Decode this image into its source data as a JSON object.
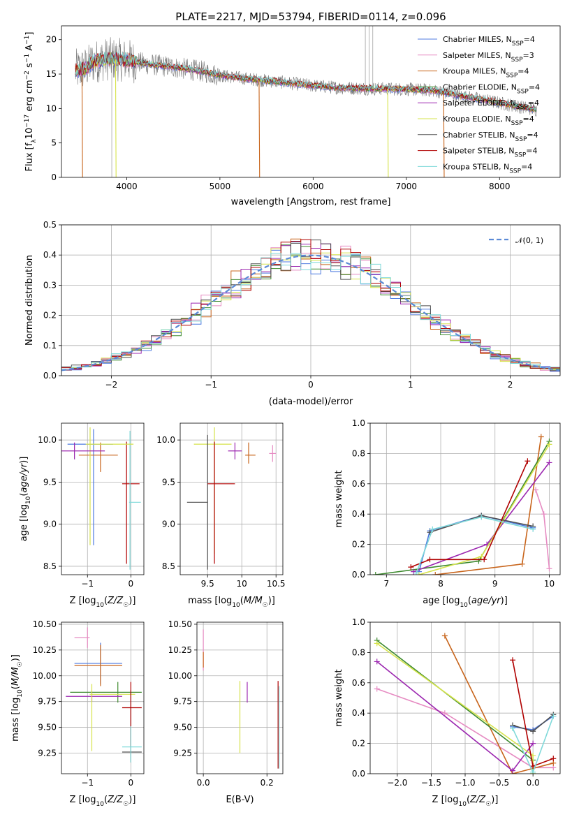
{
  "colors": {
    "Chabrier MILES": "#4f7be0",
    "Salpeter MILES": "#e68bc2",
    "Kroupa MILES": "#c8651c",
    "Chabrier ELODIE": "#3d8a2e",
    "Salpeter ELODIE": "#9c27b0",
    "Kroupa ELODIE": "#d6e34b",
    "Chabrier STELIB": "#505050",
    "Salpeter STELIB": "#b00000",
    "Kroupa STELIB": "#7fd9d9",
    "data": "#7a7a7a",
    "normal": "#5b8ad6",
    "grid": "#b0b0b0"
  },
  "chart_data": [
    {
      "id": "spectrum",
      "type": "line",
      "title": "PLATE=2217, MJD=53794, FIBERID=0114, z=0.096",
      "xlabel": "wavelength [Angstrom, rest frame]",
      "ylabel": "Flux [f_λ10^-17 erg cm^-2 s^-1 A^-1]",
      "xlim": [
        3300,
        8650
      ],
      "ylim": [
        0,
        22
      ],
      "xticks": [
        4000,
        5000,
        6000,
        7000,
        8000
      ],
      "yticks": [
        0,
        5,
        10,
        15,
        20
      ],
      "grid": false,
      "legend_placement": "top-right",
      "series": [
        {
          "name": "Chabrier MILES, N_SSP=4",
          "label_main": "Chabrier MILES, N",
          "label_sub": "SSP",
          "label_tail": "=4",
          "color": "Chabrier MILES"
        },
        {
          "name": "Salpeter MILES, N_SSP=3",
          "label_main": "Salpeter MILES, N",
          "label_sub": "SSP",
          "label_tail": "=3",
          "color": "Salpeter MILES"
        },
        {
          "name": "Kroupa MILES, N_SSP=4",
          "label_main": "Kroupa MILES, N",
          "label_sub": "SSP",
          "label_tail": "=4",
          "color": "Kroupa MILES"
        },
        {
          "name": "Chabrier ELODIE, N_SSP=4",
          "label_main": "Chabrier ELODIE, N",
          "label_sub": "SSP",
          "label_tail": "=4",
          "color": "Chabrier ELODIE"
        },
        {
          "name": "Salpeter ELODIE, N_SSP=4",
          "label_main": "Salpeter ELODIE, N",
          "label_sub": "SSP",
          "label_tail": "=4",
          "color": "Salpeter ELODIE"
        },
        {
          "name": "Kroupa ELODIE, N_SSP=4",
          "label_main": "Kroupa ELODIE, N",
          "label_sub": "SSP",
          "label_tail": "=4",
          "color": "Kroupa ELODIE"
        },
        {
          "name": "Chabrier STELIB, N_SSP=4",
          "label_main": "Chabrier STELIB, N",
          "label_sub": "SSP",
          "label_tail": "=4",
          "color": "Chabrier STELIB"
        },
        {
          "name": "Salpeter STELIB, N_SSP=4",
          "label_main": "Salpeter STELIB, N",
          "label_sub": "SSP",
          "label_tail": "=4",
          "color": "Salpeter STELIB"
        },
        {
          "name": "Kroupa STELIB, N_SSP=4",
          "label_main": "Kroupa STELIB, N",
          "label_sub": "SSP",
          "label_tail": "=4",
          "color": "Kroupa STELIB"
        }
      ],
      "continuum": {
        "x": [
          3450,
          3550,
          3650,
          3800,
          4000,
          4200,
          4500,
          4800,
          5000,
          5300,
          5600,
          6000,
          6300,
          6600,
          7000,
          7300,
          7600,
          8000,
          8400
        ],
        "y": [
          15.5,
          15.8,
          16.8,
          17.2,
          17.0,
          16.5,
          16.0,
          15.4,
          14.8,
          14.3,
          13.9,
          13.3,
          13.0,
          12.9,
          12.8,
          12.6,
          11.8,
          10.8,
          9.8
        ]
      },
      "model_dropouts": [
        {
          "x": 3520,
          "color": "Kroupa MILES"
        },
        {
          "x": 5420,
          "color": "Kroupa MILES"
        },
        {
          "x": 7400,
          "color": "Kroupa MILES"
        },
        {
          "x": 3880,
          "color": "Kroupa ELODIE"
        },
        {
          "x": 6800,
          "color": "Kroupa ELODIE"
        }
      ],
      "data_spikes": [
        {
          "x": 3840,
          "y": 0
        },
        {
          "x": 6560,
          "y": 22
        },
        {
          "x": 6600,
          "y": 22
        },
        {
          "x": 6640,
          "y": 22
        }
      ]
    },
    {
      "id": "residuals",
      "type": "line",
      "xlabel": "(data-model)/error",
      "ylabel": "Normed distribution",
      "xlim": [
        -2.5,
        2.5
      ],
      "ylim": [
        0,
        0.5
      ],
      "xticks": [
        -2,
        -1,
        0,
        1,
        2
      ],
      "yticks": [
        0.0,
        0.1,
        0.2,
        0.3,
        0.4,
        0.5
      ],
      "grid": true,
      "legend_placement": "top-right",
      "legend_label": "𝒩(0, 1)",
      "normal_curve": {
        "mu": 0,
        "sigma": 1
      }
    },
    {
      "id": "age-vs-z",
      "type": "scatter",
      "xlabel": "Z [log10(Z/Z☉)]",
      "ylabel": "age [log10(age/yr)]",
      "xlim": [
        -1.6,
        0.3
      ],
      "ylim": [
        8.4,
        10.2
      ],
      "xticks": [
        -1,
        0
      ],
      "yticks": [
        8.5,
        9.0,
        9.5,
        10.0
      ],
      "grid": true,
      "points": [
        {
          "x": -0.86,
          "y": 9.95,
          "xerr": [
            0.6,
            0.45
          ],
          "yerr": [
            1.2,
            0.18
          ],
          "color": "Chabrier MILES"
        },
        {
          "x": -0.7,
          "y": 9.82,
          "xerr": [
            0.5,
            0.4
          ],
          "yerr": [
            0.2,
            0.15
          ],
          "color": "Kroupa MILES"
        },
        {
          "x": -0.1,
          "y": 9.48,
          "xerr": [
            0.1,
            0.3
          ],
          "yerr": [
            0.95,
            0.5
          ],
          "color": "Salpeter STELIB"
        },
        {
          "x": -0.02,
          "y": 9.26,
          "xerr": [
            0.02,
            0.25
          ],
          "yerr": [
            0.8,
            0.85
          ],
          "color": "Kroupa STELIB"
        },
        {
          "x": -0.94,
          "y": 9.95,
          "xerr": [
            0.1,
            1.0
          ],
          "yerr": [
            1.2,
            0.2
          ],
          "color": "Kroupa ELODIE"
        },
        {
          "x": -1.3,
          "y": 9.87,
          "xerr": [
            0.3,
            0.7
          ],
          "yerr": [
            0.1,
            0.1
          ],
          "color": "Salpeter ELODIE"
        }
      ]
    },
    {
      "id": "age-vs-mass",
      "type": "scatter",
      "xlabel": "mass [log10(M/M☉)]",
      "ylabel": "",
      "xlim": [
        9.1,
        10.6
      ],
      "ylim": [
        8.4,
        10.2
      ],
      "xticks": [
        9.5,
        10.0,
        10.5
      ],
      "yticks": [
        8.5,
        9.0,
        9.5,
        10.0
      ],
      "grid": true,
      "points": [
        {
          "x": 9.6,
          "y": 9.95,
          "xerr": [
            0.3,
            0.25
          ],
          "yerr": [
            1.3,
            0.2
          ],
          "color": "Kroupa ELODIE"
        },
        {
          "x": 9.5,
          "y": 9.26,
          "xerr": [
            0.3,
            0.0
          ],
          "yerr": [
            0.8,
            0.8
          ],
          "color": "Chabrier STELIB"
        },
        {
          "x": 9.6,
          "y": 9.48,
          "xerr": [
            0.1,
            0.3
          ],
          "yerr": [
            0.95,
            0.5
          ],
          "color": "Salpeter STELIB"
        },
        {
          "x": 10.1,
          "y": 9.82,
          "xerr": [
            0.05,
            0.1
          ],
          "yerr": [
            0.1,
            0.15
          ],
          "color": "Kroupa MILES"
        },
        {
          "x": 10.45,
          "y": 9.84,
          "xerr": [
            0.05,
            0.05
          ],
          "yerr": [
            0.1,
            0.1
          ],
          "color": "Salpeter MILES"
        },
        {
          "x": 9.9,
          "y": 9.87,
          "xerr": [
            0.1,
            0.1
          ],
          "yerr": [
            0.1,
            0.1
          ],
          "color": "Salpeter ELODIE"
        }
      ]
    },
    {
      "id": "weight-vs-age",
      "type": "line",
      "xlabel": "age [log10(age/yr)]",
      "ylabel": "mass weight",
      "xlim": [
        6.7,
        10.2
      ],
      "ylim": [
        0.0,
        1.0
      ],
      "xticks": [
        7,
        8,
        9,
        10
      ],
      "yticks": [
        0.0,
        0.2,
        0.4,
        0.6,
        0.8,
        1.0
      ],
      "grid": true,
      "series": [
        {
          "color": "Chabrier MILES",
          "x": [
            7.6,
            7.8,
            8.75,
            9.7
          ],
          "y": [
            0.02,
            0.29,
            0.39,
            0.31
          ]
        },
        {
          "color": "Salpeter MILES",
          "x": [
            9.75,
            9.9,
            10.0
          ],
          "y": [
            0.56,
            0.4,
            0.04
          ]
        },
        {
          "color": "Kroupa MILES",
          "x": [
            7.9,
            9.5,
            9.85
          ],
          "y": [
            0.0,
            0.07,
            0.91
          ]
        },
        {
          "color": "Chabrier ELODIE",
          "x": [
            6.8,
            8.7,
            10.0
          ],
          "y": [
            0.0,
            0.09,
            0.88
          ]
        },
        {
          "color": "Salpeter ELODIE",
          "x": [
            7.5,
            8.85,
            10.0
          ],
          "y": [
            0.02,
            0.2,
            0.74
          ]
        },
        {
          "color": "Kroupa ELODIE",
          "x": [
            7.6,
            8.75,
            10.0
          ],
          "y": [
            0.0,
            0.12,
            0.86
          ]
        },
        {
          "color": "Chabrier STELIB",
          "x": [
            7.8,
            8.75,
            9.7
          ],
          "y": [
            0.28,
            0.39,
            0.32
          ]
        },
        {
          "color": "Salpeter STELIB",
          "x": [
            7.45,
            7.8,
            8.8,
            9.6
          ],
          "y": [
            0.05,
            0.1,
            0.1,
            0.75
          ]
        },
        {
          "color": "Kroupa STELIB",
          "x": [
            7.55,
            7.85,
            8.75,
            9.7
          ],
          "y": [
            0.01,
            0.3,
            0.38,
            0.3
          ]
        }
      ]
    },
    {
      "id": "mass-vs-z",
      "type": "scatter",
      "xlabel": "Z [log10(Z/Z☉)]",
      "ylabel": "mass [log10(M/M☉)]",
      "xlim": [
        -1.6,
        0.3
      ],
      "ylim": [
        9.05,
        10.52
      ],
      "xticks": [
        -1,
        0
      ],
      "yticks": [
        9.25,
        9.5,
        9.75,
        10.0,
        10.25,
        10.5
      ],
      "grid": true,
      "points": [
        {
          "x": -1.0,
          "y": 10.37,
          "xerr": [
            0.3,
            0.05
          ],
          "yerr": [
            0.1,
            0.1
          ],
          "color": "Salpeter MILES"
        },
        {
          "x": -0.7,
          "y": 10.12,
          "xerr": [
            0.6,
            0.5
          ],
          "yerr": [
            0.2,
            0.2
          ],
          "color": "Chabrier MILES"
        },
        {
          "x": -0.7,
          "y": 10.1,
          "xerr": [
            0.6,
            0.5
          ],
          "yerr": [
            0.2,
            0.2
          ],
          "color": "Kroupa MILES"
        },
        {
          "x": -0.3,
          "y": 9.84,
          "xerr": [
            1.1,
            0.55
          ],
          "yerr": [
            0.1,
            0.1
          ],
          "color": "Chabrier ELODIE"
        },
        {
          "x": -0.9,
          "y": 9.8,
          "xerr": [
            0.6,
            0.7
          ],
          "yerr": [
            0.05,
            0.05
          ],
          "color": "Salpeter ELODIE"
        },
        {
          "x": -0.9,
          "y": 9.82,
          "xerr": [
            0.05,
            1.0
          ],
          "yerr": [
            0.55,
            0.1
          ],
          "color": "Kroupa ELODIE"
        },
        {
          "x": 0.0,
          "y": 9.26,
          "xerr": [
            0.2,
            0.25
          ],
          "yerr": [
            0.1,
            0.6
          ],
          "color": "Chabrier STELIB"
        },
        {
          "x": 0.0,
          "y": 9.69,
          "xerr": [
            0.2,
            0.25
          ],
          "yerr": [
            0.38,
            0.25
          ],
          "color": "Salpeter STELIB"
        },
        {
          "x": 0.0,
          "y": 9.31,
          "xerr": [
            0.2,
            0.25
          ],
          "yerr": [
            0.15,
            0.2
          ],
          "color": "Kroupa STELIB"
        }
      ]
    },
    {
      "id": "mass-vs-ebv",
      "type": "scatter",
      "xlabel": "E(B-V)",
      "ylabel": "",
      "xlim": [
        -0.02,
        0.25
      ],
      "ylim": [
        9.05,
        10.52
      ],
      "xticks": [
        0.0,
        0.2
      ],
      "yticks": [
        9.25,
        9.5,
        9.75,
        10.0,
        10.25,
        10.5
      ],
      "grid": true,
      "points": [
        {
          "x": 0.0,
          "y": 10.25,
          "xerr": [
            0,
            0
          ],
          "yerr": [
            0.2,
            0.2
          ],
          "color": "Salpeter MILES"
        },
        {
          "x": 0.0,
          "y": 10.18,
          "xerr": [
            0,
            0
          ],
          "yerr": [
            0.1,
            0.05
          ],
          "color": "Kroupa MILES"
        },
        {
          "x": 0.115,
          "y": 9.6,
          "xerr": [
            0,
            0
          ],
          "yerr": [
            0.35,
            0.35
          ],
          "color": "Kroupa ELODIE"
        },
        {
          "x": 0.138,
          "y": 9.84,
          "xerr": [
            0,
            0
          ],
          "yerr": [
            0.1,
            0.1
          ],
          "color": "Salpeter ELODIE"
        },
        {
          "x": 0.235,
          "y": 9.5,
          "xerr": [
            0,
            0
          ],
          "yerr": [
            0.4,
            0.45
          ],
          "color": "Salpeter STELIB"
        },
        {
          "x": 0.238,
          "y": 9.5,
          "xerr": [
            0,
            0
          ],
          "yerr": [
            0.4,
            0.4
          ],
          "color": "Kroupa STELIB"
        }
      ]
    },
    {
      "id": "weight-vs-z",
      "type": "line",
      "xlabel": "Z [log10(Z/Z☉)]",
      "ylabel": "mass weight",
      "xlim": [
        -2.4,
        0.4
      ],
      "ylim": [
        0.0,
        1.0
      ],
      "xticks": [
        -2.0,
        -1.5,
        -1.0,
        -0.5,
        0.0
      ],
      "yticks": [
        0.0,
        0.2,
        0.4,
        0.6,
        0.8,
        1.0
      ],
      "grid": true,
      "series": [
        {
          "color": "Chabrier MILES",
          "x": [
            -0.3,
            0.0,
            0.3
          ],
          "y": [
            0.31,
            0.29,
            0.38
          ]
        },
        {
          "color": "Salpeter MILES",
          "x": [
            -2.3,
            -1.3,
            0.0,
            0.3
          ],
          "y": [
            0.56,
            0.4,
            0.04,
            0.04
          ]
        },
        {
          "color": "Kroupa MILES",
          "x": [
            -1.3,
            -0.3,
            0.3
          ],
          "y": [
            0.91,
            0.0,
            0.07
          ]
        },
        {
          "color": "Chabrier ELODIE",
          "x": [
            -2.3,
            0.0,
            0.0
          ],
          "y": [
            0.88,
            0.09,
            0.0
          ]
        },
        {
          "color": "Salpeter ELODIE",
          "x": [
            -2.3,
            -0.3,
            0.0
          ],
          "y": [
            0.74,
            0.02,
            0.2
          ]
        },
        {
          "color": "Kroupa ELODIE",
          "x": [
            -2.3,
            0.0,
            0.0
          ],
          "y": [
            0.86,
            0.12,
            0.0
          ]
        },
        {
          "color": "Chabrier STELIB",
          "x": [
            -0.3,
            0.0,
            0.3
          ],
          "y": [
            0.32,
            0.28,
            0.39
          ]
        },
        {
          "color": "Salpeter STELIB",
          "x": [
            -0.3,
            0.0,
            0.3
          ],
          "y": [
            0.75,
            0.05,
            0.1
          ]
        },
        {
          "color": "Kroupa STELIB",
          "x": [
            -0.3,
            0.0,
            0.3
          ],
          "y": [
            0.3,
            0.01,
            0.38
          ]
        }
      ]
    }
  ]
}
